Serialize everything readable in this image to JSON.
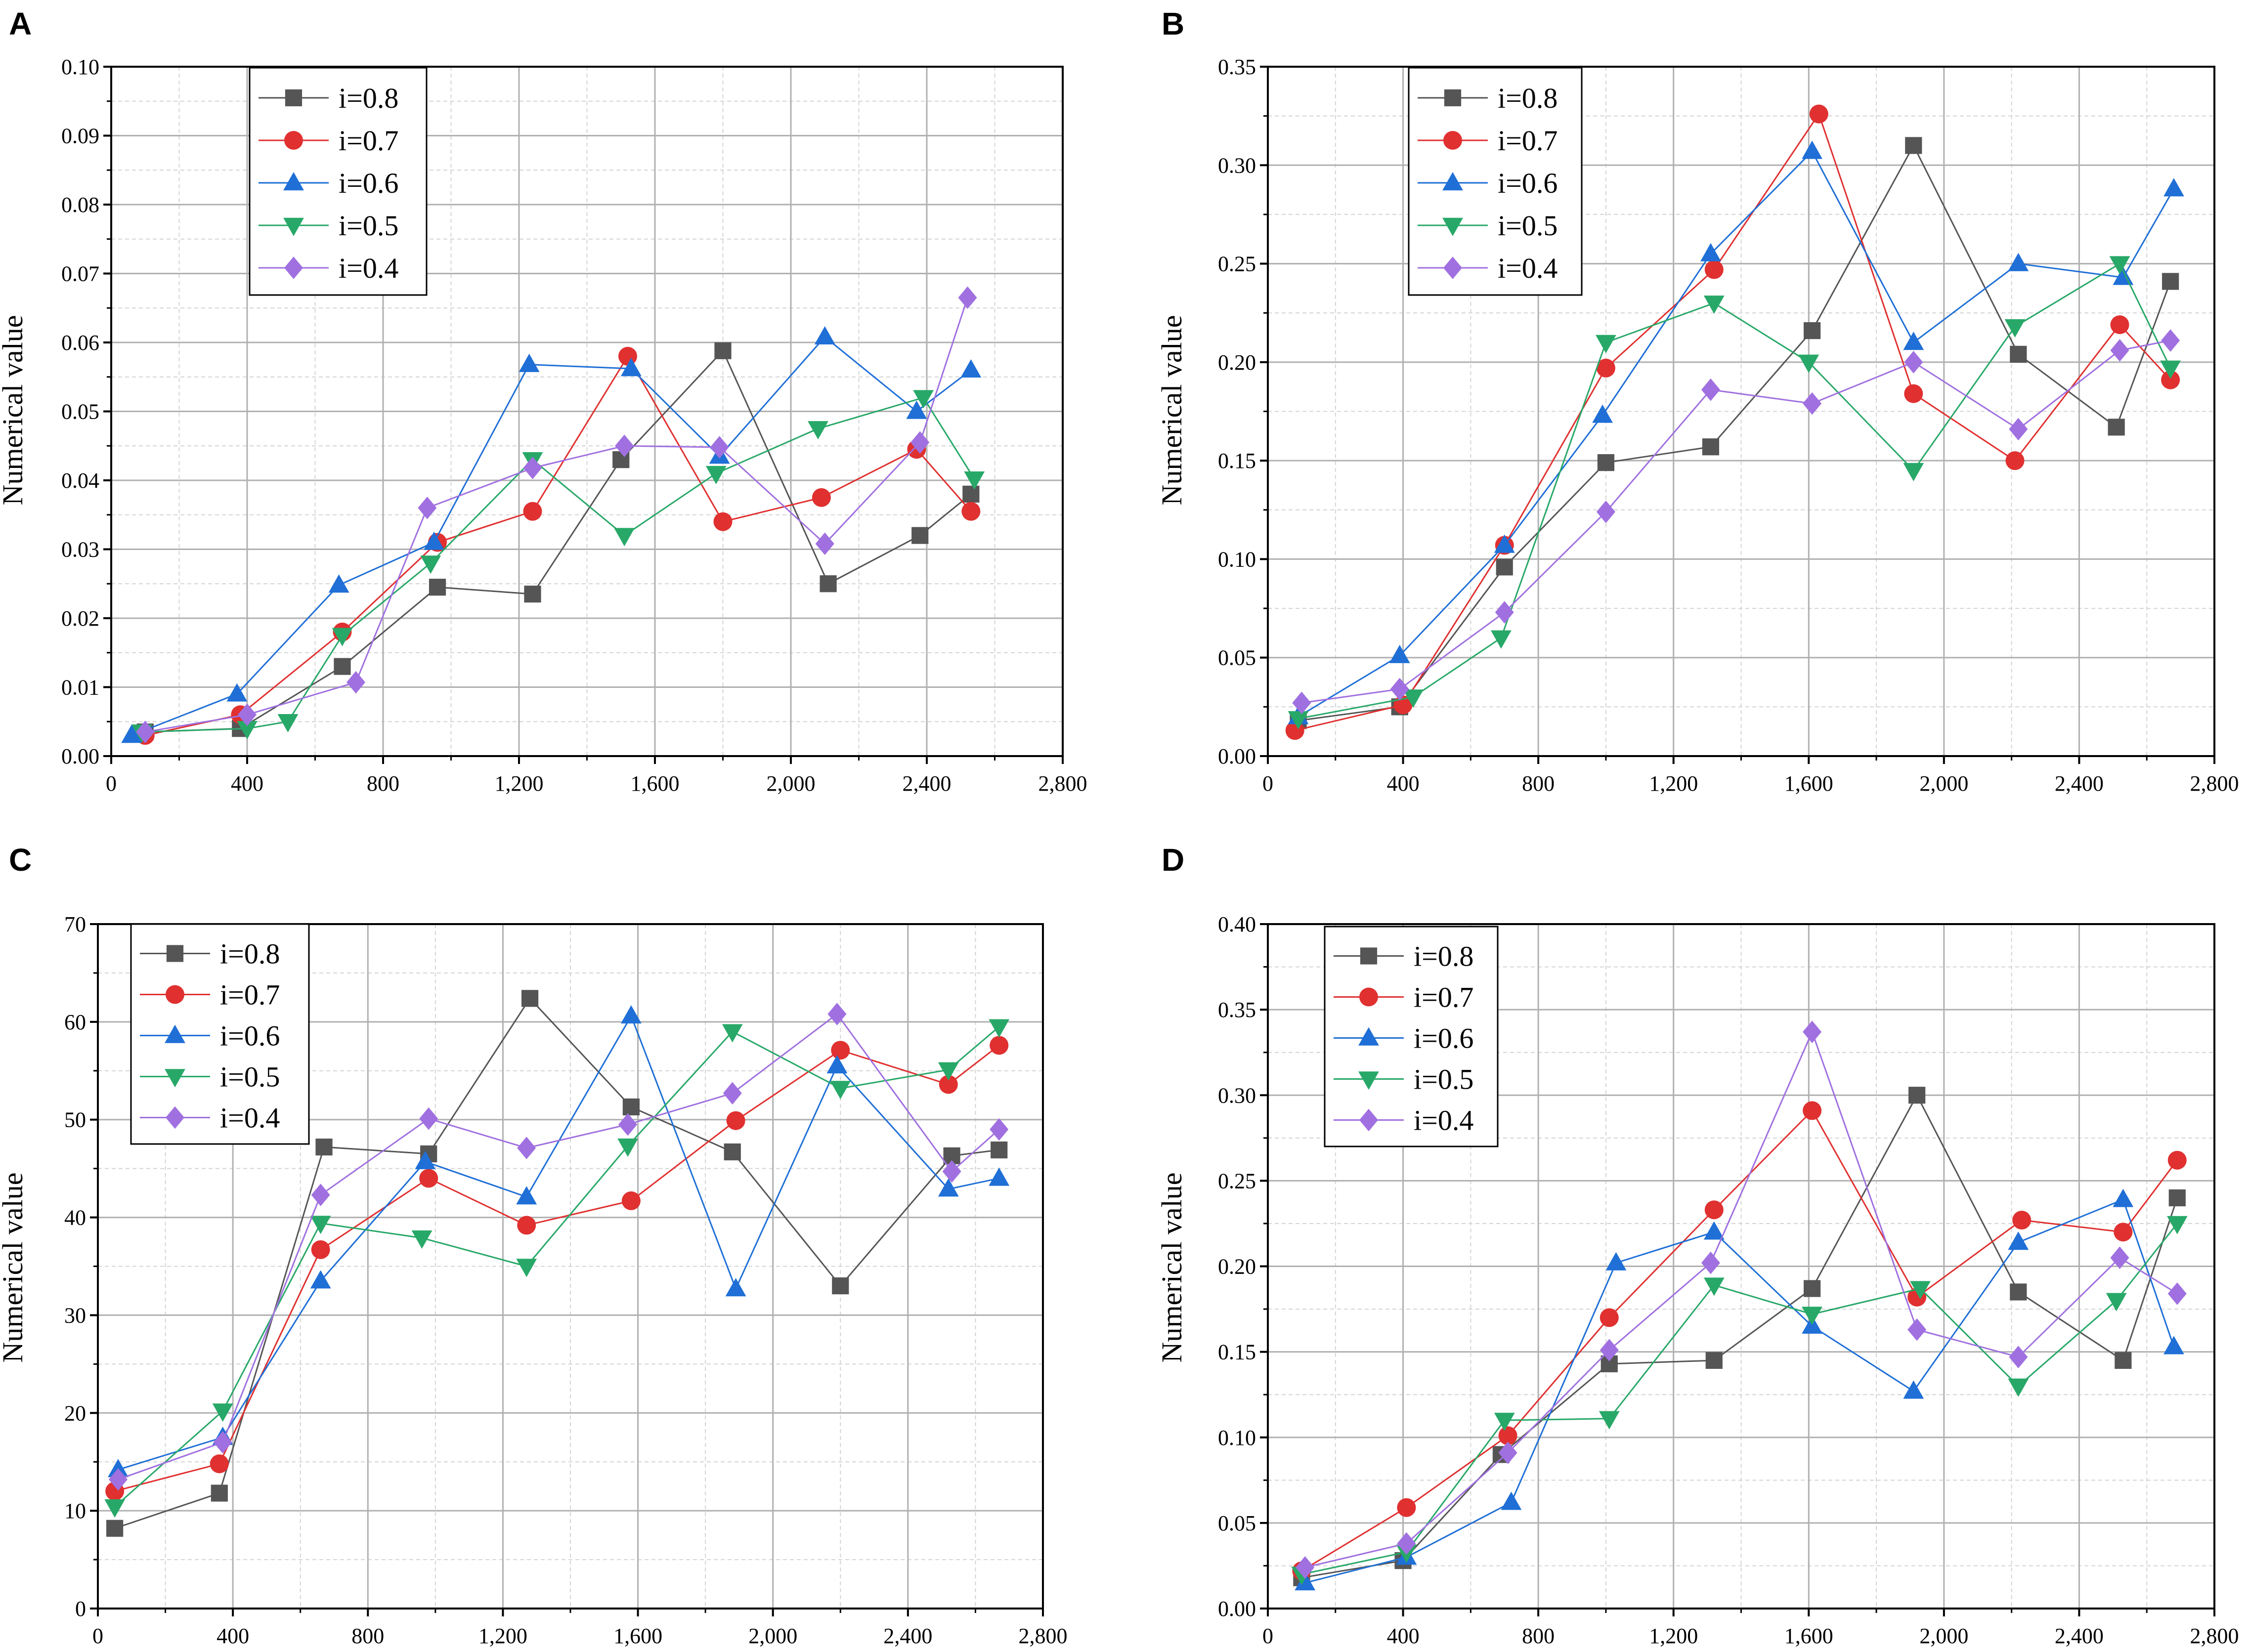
{
  "figure_title": "",
  "chart_data": [
    {
      "panel": "A",
      "type": "line",
      "xlabel": "",
      "ylabel": "Numerical value",
      "xlim": [
        0,
        2800
      ],
      "ylim": [
        0,
        0.1
      ],
      "xticks": [
        0,
        400,
        800,
        1200,
        1600,
        2000,
        2400,
        2800
      ],
      "xtick_labels": [
        "0",
        "400",
        "800",
        "1,200",
        "1,600",
        "2,000",
        "2,400",
        "2,800"
      ],
      "yticks": [
        0,
        0.01,
        0.02,
        0.03,
        0.04,
        0.05,
        0.06,
        0.07,
        0.08,
        0.09,
        0.1
      ],
      "ytick_labels": [
        "0.00",
        "0.01",
        "0.02",
        "0.03",
        "0.04",
        "0.05",
        "0.06",
        "0.07",
        "0.08",
        "0.09",
        "0.10"
      ],
      "grid": true,
      "legend_position": "top-left",
      "series": [
        {
          "name": "i=0.8",
          "color": "#555555",
          "marker": "square",
          "x": [
            100,
            380,
            680,
            960,
            1240,
            1500,
            1800,
            2110,
            2380,
            2530
          ],
          "y": [
            0.0035,
            0.004,
            0.013,
            0.0245,
            0.0235,
            0.043,
            0.0588,
            0.025,
            0.032,
            0.038
          ]
        },
        {
          "name": "i=0.7",
          "color": "#e03030",
          "marker": "circle",
          "x": [
            100,
            380,
            680,
            960,
            1240,
            1520,
            1800,
            2090,
            2370,
            2530
          ],
          "y": [
            0.003,
            0.006,
            0.018,
            0.031,
            0.0355,
            0.058,
            0.034,
            0.0375,
            0.0445,
            0.0355
          ]
        },
        {
          "name": "i=0.6",
          "color": "#1f6fd6",
          "marker": "triangle-up",
          "x": [
            60,
            370,
            670,
            950,
            1230,
            1530,
            1790,
            2100,
            2370,
            2530
          ],
          "y": [
            0.003,
            0.009,
            0.0248,
            0.031,
            0.0568,
            0.0562,
            0.0435,
            0.0608,
            0.05,
            0.056
          ]
        },
        {
          "name": "i=0.5",
          "color": "#28a868",
          "marker": "triangle-down",
          "x": [
            90,
            400,
            520,
            680,
            940,
            1240,
            1510,
            1780,
            2080,
            2390,
            2540
          ],
          "y": [
            0.0035,
            0.004,
            0.005,
            0.0175,
            0.028,
            0.043,
            0.032,
            0.041,
            0.0475,
            0.052,
            0.0402
          ]
        },
        {
          "name": "i=0.4",
          "color": "#a070e0",
          "marker": "diamond",
          "x": [
            100,
            400,
            720,
            930,
            1240,
            1510,
            1790,
            2100,
            2380,
            2520
          ],
          "y": [
            0.0035,
            0.006,
            0.0107,
            0.036,
            0.0418,
            0.045,
            0.0448,
            0.0308,
            0.0455,
            0.0665
          ]
        }
      ]
    },
    {
      "panel": "B",
      "type": "line",
      "xlabel": "",
      "ylabel": "Numerical value",
      "xlim": [
        0,
        2800
      ],
      "ylim": [
        0,
        0.35
      ],
      "xticks": [
        0,
        400,
        800,
        1200,
        1600,
        2000,
        2400,
        2800
      ],
      "xtick_labels": [
        "0",
        "400",
        "800",
        "1,200",
        "1,600",
        "2,000",
        "2,400",
        "2,800"
      ],
      "yticks": [
        0,
        0.05,
        0.1,
        0.15,
        0.2,
        0.25,
        0.3,
        0.35
      ],
      "ytick_labels": [
        "0.00",
        "0.05",
        "0.10",
        "0.15",
        "0.20",
        "0.25",
        "0.30",
        "0.35"
      ],
      "grid": true,
      "legend_position": "top-left",
      "series": [
        {
          "name": "i=0.8",
          "color": "#555555",
          "marker": "square",
          "x": [
            90,
            390,
            700,
            1000,
            1310,
            1610,
            1910,
            2220,
            2510,
            2670
          ],
          "y": [
            0.018,
            0.025,
            0.096,
            0.149,
            0.157,
            0.216,
            0.31,
            0.204,
            0.167,
            0.241
          ]
        },
        {
          "name": "i=0.7",
          "color": "#e03030",
          "marker": "circle",
          "x": [
            80,
            400,
            700,
            1000,
            1320,
            1630,
            1910,
            2210,
            2520,
            2670
          ],
          "y": [
            0.013,
            0.026,
            0.107,
            0.197,
            0.247,
            0.326,
            0.184,
            0.15,
            0.219,
            0.191
          ]
        },
        {
          "name": "i=0.6",
          "color": "#1f6fd6",
          "marker": "triangle-up",
          "x": [
            90,
            390,
            700,
            990,
            1310,
            1610,
            1910,
            2220,
            2530,
            2680
          ],
          "y": [
            0.02,
            0.051,
            0.107,
            0.173,
            0.255,
            0.307,
            0.21,
            0.25,
            0.243,
            0.288
          ]
        },
        {
          "name": "i=0.5",
          "color": "#28a868",
          "marker": "triangle-down",
          "x": [
            90,
            430,
            690,
            1000,
            1320,
            1600,
            1910,
            2210,
            2520,
            2670
          ],
          "y": [
            0.019,
            0.03,
            0.06,
            0.21,
            0.23,
            0.2,
            0.145,
            0.218,
            0.25,
            0.197
          ]
        },
        {
          "name": "i=0.4",
          "color": "#a070e0",
          "marker": "diamond",
          "x": [
            100,
            390,
            700,
            1000,
            1310,
            1610,
            1910,
            2220,
            2520,
            2670
          ],
          "y": [
            0.027,
            0.034,
            0.073,
            0.124,
            0.186,
            0.179,
            0.2,
            0.166,
            0.206,
            0.211
          ]
        }
      ]
    },
    {
      "panel": "C",
      "type": "line",
      "xlabel": "",
      "ylabel": "Numerical value",
      "xlim": [
        0,
        2800
      ],
      "ylim": [
        0,
        70
      ],
      "xticks": [
        0,
        400,
        800,
        1200,
        1600,
        2000,
        2400,
        2800
      ],
      "xtick_labels": [
        "0",
        "400",
        "800",
        "1,200",
        "1,600",
        "2,000",
        "2,400",
        "2,800"
      ],
      "yticks": [
        0,
        10,
        20,
        30,
        40,
        50,
        60,
        70
      ],
      "ytick_labels": [
        "0",
        "10",
        "20",
        "30",
        "40",
        "50",
        "60",
        "70"
      ],
      "grid": true,
      "legend_position": "top-left",
      "series": [
        {
          "name": "i=0.8",
          "color": "#555555",
          "marker": "square",
          "x": [
            50,
            360,
            670,
            980,
            1280,
            1580,
            1880,
            2200,
            2530,
            2670
          ],
          "y": [
            8.2,
            11.8,
            47.2,
            46.5,
            62.4,
            51.3,
            46.7,
            33,
            46.3,
            46.9
          ]
        },
        {
          "name": "i=0.7",
          "color": "#e03030",
          "marker": "circle",
          "x": [
            50,
            360,
            660,
            980,
            1270,
            1580,
            1890,
            2200,
            2520,
            2670
          ],
          "y": [
            12,
            14.8,
            36.7,
            44,
            39.2,
            41.7,
            49.9,
            57.1,
            53.6,
            57.6
          ]
        },
        {
          "name": "i=0.6",
          "color": "#1f6fd6",
          "marker": "triangle-up",
          "x": [
            60,
            370,
            660,
            970,
            1270,
            1580,
            1890,
            2190,
            2520,
            2670
          ],
          "y": [
            14.2,
            17.5,
            33.5,
            45.7,
            42.1,
            60.6,
            32.7,
            55.5,
            42.9,
            44
          ]
        },
        {
          "name": "i=0.5",
          "color": "#28a868",
          "marker": "triangle-down",
          "x": [
            50,
            370,
            660,
            960,
            1270,
            1570,
            1880,
            2200,
            2520,
            2670
          ],
          "y": [
            10.4,
            20.2,
            39.4,
            37.9,
            35,
            47.3,
            59,
            53.2,
            55.1,
            59.5
          ]
        },
        {
          "name": "i=0.4",
          "color": "#a070e0",
          "marker": "diamond",
          "x": [
            60,
            370,
            660,
            980,
            1270,
            1570,
            1880,
            2190,
            2530,
            2670
          ],
          "y": [
            13.2,
            17,
            42.3,
            50.1,
            47.1,
            49.5,
            52.7,
            60.8,
            44.7,
            49
          ]
        }
      ]
    },
    {
      "panel": "D",
      "type": "line",
      "xlabel": "",
      "ylabel": "Numerical value",
      "xlim": [
        0,
        2800
      ],
      "ylim": [
        0,
        0.4
      ],
      "xticks": [
        0,
        400,
        800,
        1200,
        1600,
        2000,
        2400,
        2800
      ],
      "xtick_labels": [
        "0",
        "400",
        "800",
        "1,200",
        "1,600",
        "2,000",
        "2,400",
        "2,800"
      ],
      "yticks": [
        0,
        0.05,
        0.1,
        0.15,
        0.2,
        0.25,
        0.3,
        0.35,
        0.4
      ],
      "ytick_labels": [
        "0.00",
        "0.05",
        "0.10",
        "0.15",
        "0.20",
        "0.25",
        "0.30",
        "0.35",
        "0.40"
      ],
      "grid": true,
      "legend_position": "top-left",
      "series": [
        {
          "name": "i=0.8",
          "color": "#555555",
          "marker": "square",
          "x": [
            100,
            400,
            690,
            1010,
            1320,
            1610,
            1920,
            2220,
            2530,
            2690
          ],
          "y": [
            0.018,
            0.028,
            0.09,
            0.143,
            0.145,
            0.187,
            0.3,
            0.185,
            0.145,
            0.24
          ]
        },
        {
          "name": "i=0.7",
          "color": "#e03030",
          "marker": "circle",
          "x": [
            100,
            410,
            710,
            1010,
            1320,
            1610,
            1920,
            2230,
            2530,
            2690
          ],
          "y": [
            0.022,
            0.059,
            0.101,
            0.17,
            0.233,
            0.291,
            0.182,
            0.227,
            0.22,
            0.262
          ]
        },
        {
          "name": "i=0.6",
          "color": "#1f6fd6",
          "marker": "triangle-up",
          "x": [
            110,
            410,
            720,
            1030,
            1320,
            1610,
            1910,
            2220,
            2530,
            2680
          ],
          "y": [
            0.015,
            0.03,
            0.062,
            0.202,
            0.22,
            0.165,
            0.127,
            0.214,
            0.239,
            0.153
          ]
        },
        {
          "name": "i=0.5",
          "color": "#28a868",
          "marker": "triangle-down",
          "x": [
            100,
            410,
            700,
            1010,
            1320,
            1610,
            1930,
            2220,
            2510,
            2690
          ],
          "y": [
            0.02,
            0.033,
            0.11,
            0.111,
            0.189,
            0.172,
            0.187,
            0.13,
            0.18,
            0.225
          ]
        },
        {
          "name": "i=0.4",
          "color": "#a070e0",
          "marker": "diamond",
          "x": [
            110,
            410,
            710,
            1010,
            1310,
            1610,
            1920,
            2220,
            2520,
            2690
          ],
          "y": [
            0.024,
            0.038,
            0.091,
            0.151,
            0.202,
            0.337,
            0.163,
            0.147,
            0.205,
            0.184
          ]
        }
      ]
    }
  ]
}
